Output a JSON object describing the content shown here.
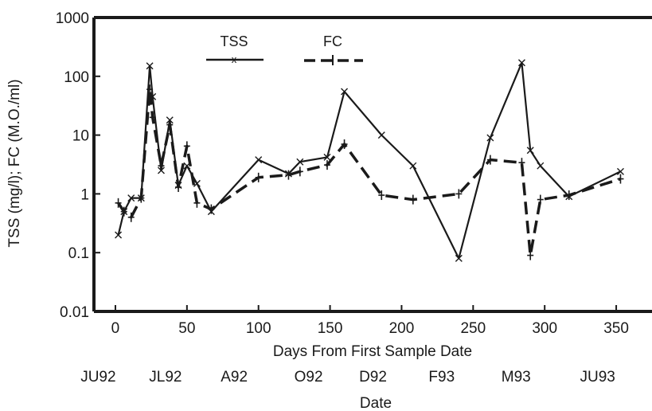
{
  "chart_data": {
    "type": "line",
    "title": "",
    "xlabel": "Days From First Sample Date",
    "ylabel": "TSS (mg/l); FC (M.O./ml)",
    "secondary_xlabel": "Date",
    "xlim": [
      -15,
      375
    ],
    "ylim": [
      0.01,
      1000
    ],
    "yscale": "log",
    "x_ticks": [
      "0",
      "50",
      "100",
      "150",
      "200",
      "250",
      "300",
      "350"
    ],
    "y_ticks": [
      "0.01",
      "0.1",
      "1",
      "10",
      "100",
      "1000"
    ],
    "date_ticks": [
      {
        "label": "JU92",
        "day": -12
      },
      {
        "label": "JL92",
        "day": 35
      },
      {
        "label": "A92",
        "day": 83
      },
      {
        "label": "O92",
        "day": 135
      },
      {
        "label": "D92",
        "day": 180
      },
      {
        "label": "F93",
        "day": 228
      },
      {
        "label": "M93",
        "day": 280
      },
      {
        "label": "JU93",
        "day": 337
      }
    ],
    "legend_position": "top-center",
    "series": [
      {
        "name": "TSS",
        "style": "solid",
        "color": "#1a1a1a",
        "x": [
          2,
          6,
          11,
          18,
          24,
          26,
          32,
          38,
          44,
          50,
          57,
          67,
          100,
          121,
          129,
          148,
          160,
          186,
          208,
          240,
          262,
          284,
          290,
          297,
          317,
          353
        ],
        "y": [
          0.2,
          0.5,
          0.85,
          0.85,
          150,
          45,
          2.5,
          18,
          1.4,
          3.0,
          1.5,
          0.5,
          3.8,
          2.2,
          3.5,
          4.2,
          55,
          10,
          3.0,
          0.08,
          9,
          170,
          5.5,
          3.0,
          0.9,
          2.4
        ]
      },
      {
        "name": "FC",
        "style": "dashed",
        "color": "#1a1a1a",
        "x": [
          2,
          6,
          11,
          18,
          24,
          26,
          32,
          38,
          44,
          50,
          57,
          67,
          100,
          121,
          129,
          148,
          160,
          186,
          208,
          240,
          262,
          284,
          290,
          297,
          317,
          353
        ],
        "y": [
          0.7,
          0.5,
          0.4,
          0.85,
          60,
          20,
          3.0,
          15,
          1.3,
          6.5,
          0.7,
          0.55,
          1.9,
          2.1,
          2.4,
          3.1,
          7.0,
          0.95,
          0.8,
          1.0,
          3.8,
          3.4,
          0.09,
          0.8,
          0.95,
          1.8
        ]
      }
    ]
  }
}
